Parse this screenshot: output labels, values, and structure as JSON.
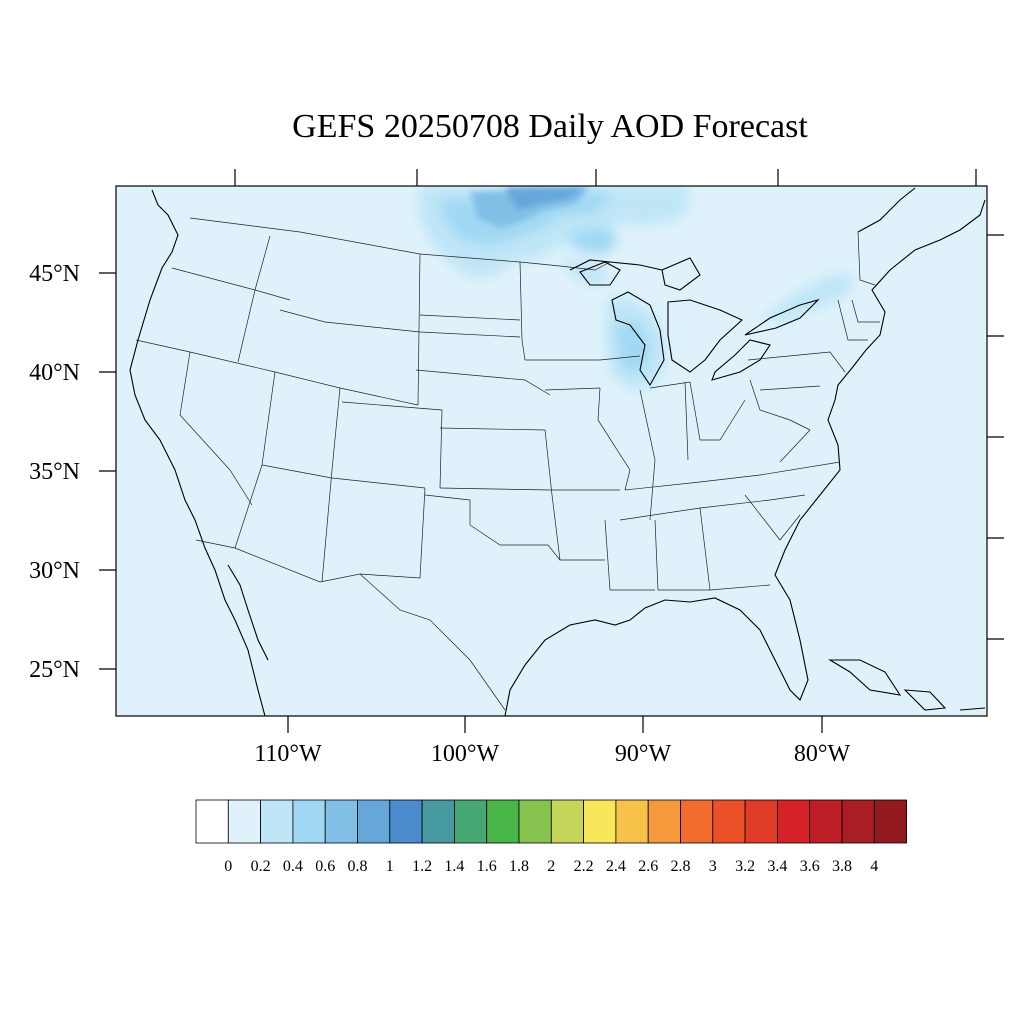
{
  "title": "GEFS 20250708 Daily AOD Forecast",
  "map": {
    "background_color": "#dff2fb",
    "lat_labels": [
      "45°N",
      "40°N",
      "35°N",
      "30°N",
      "25°N"
    ],
    "lon_labels": [
      "110°W",
      "100°W",
      "90°W",
      "80°W"
    ]
  },
  "colorbar": {
    "colors": [
      "#ffffff",
      "#dff2fb",
      "#bfe6f7",
      "#a0d8f3",
      "#82bfe6",
      "#66a7da",
      "#4a8ccc",
      "#479a9f",
      "#46a874",
      "#48b548",
      "#86c34f",
      "#c4d55a",
      "#f8e75b",
      "#f8c24a",
      "#f59a3c",
      "#f16c2e",
      "#ea5129",
      "#df3b27",
      "#d42228",
      "#be1f27",
      "#a91d25",
      "#921a1e"
    ],
    "labels": [
      "0",
      "0.2",
      "0.4",
      "0.6",
      "0.8",
      "1",
      "1.2",
      "1.4",
      "1.6",
      "1.8",
      "2",
      "2.2",
      "2.4",
      "2.6",
      "2.8",
      "3",
      "3.2",
      "3.4",
      "3.6",
      "3.8",
      "4"
    ]
  }
}
